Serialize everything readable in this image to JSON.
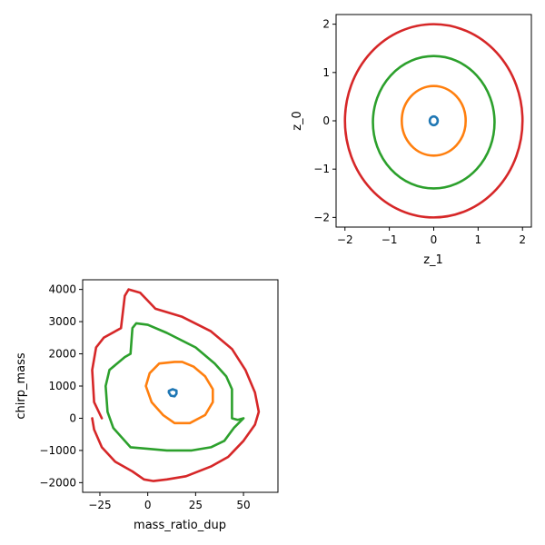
{
  "chart_data": [
    {
      "type": "scatter",
      "xlabel": "z_1",
      "ylabel": "z_0",
      "xlim": [
        -2.2,
        2.2
      ],
      "ylim": [
        -2.2,
        2.2
      ],
      "xticks": [
        -2,
        -1,
        0,
        1,
        2
      ],
      "yticks": [
        -2,
        -1,
        0,
        1,
        2
      ],
      "tick_labels_x": [
        "−2",
        "−1",
        "0",
        "1",
        "2"
      ],
      "tick_labels_y": [
        "−2",
        "−1",
        "0",
        "1",
        "2"
      ],
      "grid": false,
      "legend": "none",
      "series": [
        {
          "color": "#1f77b4",
          "shape": "ellipse",
          "center": [
            0.0,
            0.0
          ],
          "radius_x": 0.09,
          "radius_y": 0.09
        },
        {
          "color": "#ff7f0e",
          "shape": "ellipse",
          "center": [
            0.0,
            0.0
          ],
          "radius_x": 0.72,
          "radius_y": 0.72
        },
        {
          "color": "#2ca02c",
          "shape": "ellipse",
          "center": [
            0.0,
            -0.03
          ],
          "radius_x": 1.37,
          "radius_y": 1.37
        },
        {
          "color": "#d62728",
          "shape": "ellipse",
          "center": [
            0.0,
            0.0
          ],
          "radius_x": 2.0,
          "radius_y": 2.0
        }
      ]
    },
    {
      "type": "scatter",
      "xlabel": "mass_ratio_dup",
      "ylabel": "chirp_mass",
      "xlim": [
        -34,
        68
      ],
      "ylim": [
        -2300,
        4300
      ],
      "xticks": [
        -25,
        0,
        25,
        50
      ],
      "yticks": [
        -2000,
        -1000,
        0,
        1000,
        2000,
        3000,
        4000
      ],
      "tick_labels_x": [
        "−25",
        "0",
        "25",
        "50"
      ],
      "tick_labels_y": [
        "−2000",
        "−1000",
        "0",
        "1000",
        "2000",
        "3000",
        "4000"
      ],
      "grid": false,
      "legend": "none",
      "series": [
        {
          "color": "#1f77b4",
          "points": [
            [
              11,
              800
            ],
            [
              12,
              700
            ],
            [
              14,
              680
            ],
            [
              15,
              760
            ],
            [
              15,
              860
            ],
            [
              13,
              900
            ],
            [
              11,
              850
            ],
            [
              11,
              800
            ]
          ]
        },
        {
          "color": "#ff7f0e",
          "points": [
            [
              14,
              1750
            ],
            [
              6,
              1700
            ],
            [
              1,
              1400
            ],
            [
              -1,
              1000
            ],
            [
              2,
              500
            ],
            [
              8,
              100
            ],
            [
              14,
              -150
            ],
            [
              22,
              -150
            ],
            [
              30,
              100
            ],
            [
              34,
              500
            ],
            [
              34,
              900
            ],
            [
              30,
              1300
            ],
            [
              24,
              1600
            ],
            [
              18,
              1750
            ],
            [
              14,
              1750
            ]
          ]
        },
        {
          "color": "#2ca02c",
          "points": [
            [
              -9,
              -900
            ],
            [
              -18,
              -300
            ],
            [
              -21,
              200
            ],
            [
              -22,
              1000
            ],
            [
              -20,
              1500
            ],
            [
              -12,
              1900
            ],
            [
              -9,
              2000
            ],
            [
              -8,
              2800
            ],
            [
              -6,
              2950
            ],
            [
              0,
              2900
            ],
            [
              10,
              2650
            ],
            [
              25,
              2200
            ],
            [
              35,
              1700
            ],
            [
              41,
              1300
            ],
            [
              44,
              900
            ],
            [
              44,
              0
            ],
            [
              47,
              -50
            ],
            [
              50,
              0
            ],
            [
              45,
              -300
            ],
            [
              40,
              -700
            ],
            [
              33,
              -900
            ],
            [
              23,
              -1000
            ],
            [
              10,
              -1000
            ],
            [
              0,
              -950
            ],
            [
              -9,
              -900
            ]
          ]
        },
        {
          "color": "#d62728",
          "points": [
            [
              -24,
              0
            ],
            [
              -28,
              500
            ],
            [
              -29,
              1500
            ],
            [
              -27,
              2200
            ],
            [
              -23,
              2500
            ],
            [
              -14,
              2800
            ],
            [
              -12,
              3800
            ],
            [
              -10,
              4000
            ],
            [
              -4,
              3900
            ],
            [
              0,
              3650
            ],
            [
              4,
              3400
            ],
            [
              18,
              3150
            ],
            [
              33,
              2700
            ],
            [
              44,
              2150
            ],
            [
              51,
              1500
            ],
            [
              56,
              800
            ],
            [
              58,
              200
            ],
            [
              56,
              -200
            ],
            [
              50,
              -700
            ],
            [
              42,
              -1200
            ],
            [
              33,
              -1500
            ],
            [
              20,
              -1800
            ],
            [
              10,
              -1900
            ],
            [
              3,
              -1950
            ],
            [
              -2,
              -1900
            ],
            [
              -8,
              -1650
            ],
            [
              -17,
              -1350
            ],
            [
              -24,
              -900
            ],
            [
              -28,
              -350
            ],
            [
              -29,
              0
            ]
          ]
        }
      ]
    }
  ]
}
